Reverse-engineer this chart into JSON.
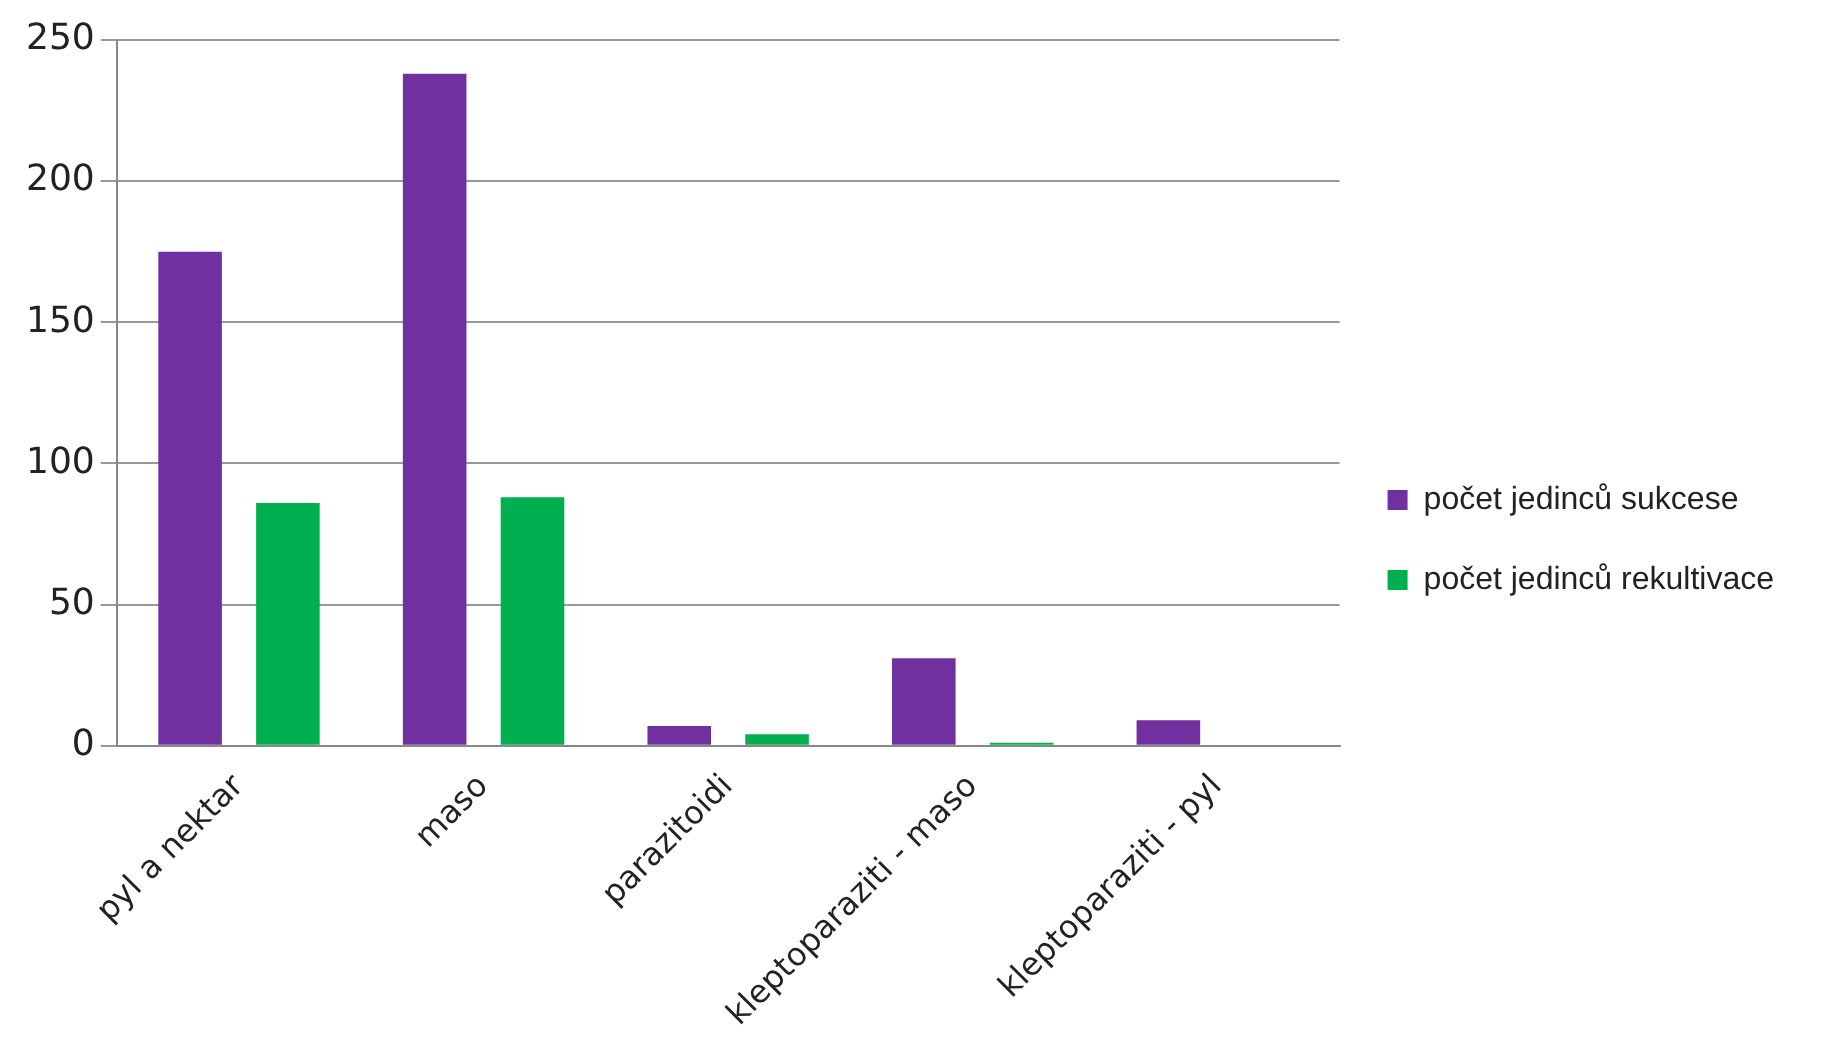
{
  "chart_data": {
    "type": "bar",
    "categories": [
      "pyl a nektar",
      "maso",
      "parazitoidi",
      "kleptoparaziti - maso",
      "kleptoparaziti - pyl"
    ],
    "series": [
      {
        "name": "počet jedinců sukcese",
        "color": "#7030a0",
        "values": [
          175,
          238,
          7,
          31,
          9
        ]
      },
      {
        "name": "počet jedinců rekultivace",
        "color": "#00b050",
        "values": [
          86,
          88,
          4,
          1,
          0
        ]
      }
    ],
    "ylim": [
      0,
      250
    ],
    "yticks": [
      0,
      50,
      100,
      150,
      200,
      250
    ],
    "grid": "y",
    "legend": "right"
  }
}
